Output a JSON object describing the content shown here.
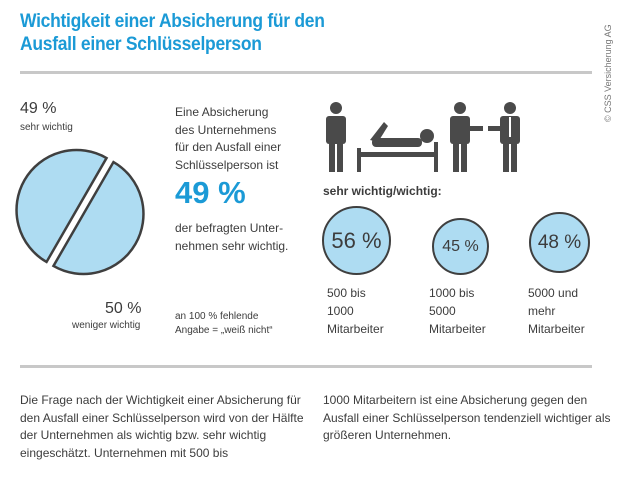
{
  "header": {
    "title_line1": "Wichtigkeit einer Absicherung für den",
    "title_line2": "Ausfall einer Schlüsselperson",
    "copyright": "© CSS Versicherung AG"
  },
  "pie": {
    "top_value": "49 %",
    "top_label": "sehr wichtig",
    "bottom_value": "50 %",
    "bottom_label": "weniger wichtig"
  },
  "statement": {
    "lines": [
      "Eine Absicherung",
      "des Unternehmens",
      "für den Ausfall einer",
      "Schlüsselperson ist"
    ],
    "highlight": "49 %",
    "after": [
      "der befragten Unter-",
      "nehmen sehr wichtig."
    ],
    "note": [
      "an 100 % fehlende",
      "Angabe = „weiß nicht“"
    ]
  },
  "size_section": {
    "heading": "sehr wichtig/wichtig:",
    "groups": [
      {
        "value": "56 %",
        "label": [
          "500 bis",
          "1000",
          "Mitarbeiter"
        ]
      },
      {
        "value": "45 %",
        "label": [
          "1000 bis",
          "5000",
          "Mitarbeiter"
        ]
      },
      {
        "value": "48 %",
        "label": [
          "5000 und",
          "mehr",
          "Mitarbeiter"
        ]
      }
    ]
  },
  "footer": {
    "left": "Die Frage nach der Wichtigkeit einer Absicherung für den Ausfall einer Schlüsselperson wird von der Hälfte der Unternehmen als wichtig bzw. sehr wichtig eingeschätzt. Unternehmen mit 500 bis",
    "right": "1000 Mitarbeitern ist eine Absicherung gegen den Ausfall einer Schlüsselperson tendenziell wichtiger als größeren Unternehmen."
  },
  "colors": {
    "accent": "#1b9ad6",
    "fill": "#aedcf2",
    "stroke": "#3f3f3f"
  },
  "chart_data": {
    "type": "pie",
    "title": "Wichtigkeit einer Absicherung für den Ausfall einer Schlüsselperson",
    "categories": [
      "sehr wichtig",
      "weniger wichtig"
    ],
    "values": [
      49,
      50
    ],
    "note": "an 100 % fehlende Angabe = „weiß nicht“",
    "secondary": {
      "type": "bubble",
      "categories": [
        "500 bis 1000 Mitarbeiter",
        "1000 bis 5000 Mitarbeiter",
        "5000 und mehr Mitarbeiter"
      ],
      "values": [
        56,
        45,
        48
      ],
      "title": "sehr wichtig/wichtig:"
    }
  }
}
